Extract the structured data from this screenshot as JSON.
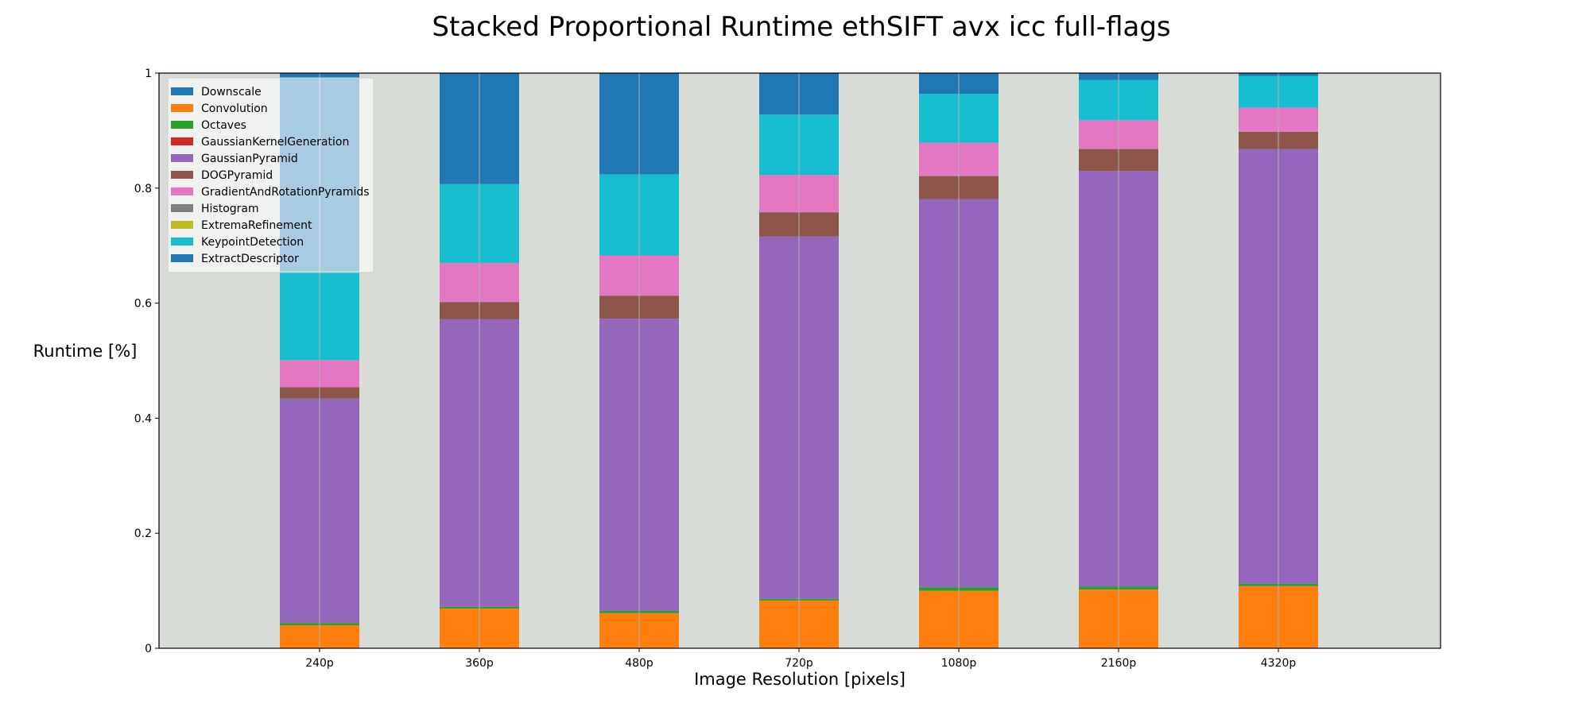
{
  "chart_data": {
    "type": "bar",
    "stacked": true,
    "title": "Stacked Proportional Runtime ethSIFT avx icc full-flags",
    "xlabel": "Image Resolution [pixels]",
    "ylabel": "Runtime [%]",
    "ylim": [
      0,
      1
    ],
    "yticks": [
      "0",
      "0.2",
      "0.4",
      "0.6",
      "0.8",
      "1"
    ],
    "grid": "vertical",
    "legend_position": "top-left",
    "background_color": "#d8dcd6",
    "categories": [
      "240p",
      "360p",
      "480p",
      "720p",
      "1080p",
      "2160p",
      "4320p"
    ],
    "series": [
      {
        "name": "Downscale",
        "color": "#1f77b4",
        "values": [
          0.0,
          0.0,
          0.0,
          0.0,
          0.0,
          0.0,
          0.0
        ]
      },
      {
        "name": "Convolution",
        "color": "#ff7f0e",
        "values": [
          0.04,
          0.069,
          0.061,
          0.083,
          0.1,
          0.102,
          0.108
        ]
      },
      {
        "name": "Octaves",
        "color": "#2ca02c",
        "values": [
          0.004,
          0.003,
          0.004,
          0.003,
          0.006,
          0.005,
          0.004
        ]
      },
      {
        "name": "GaussianKernelGeneration",
        "color": "#d62728",
        "values": [
          0.0,
          0.0,
          0.0,
          0.0,
          0.0,
          0.0,
          0.0
        ]
      },
      {
        "name": "GaussianPyramid",
        "color": "#9467bd",
        "values": [
          0.39,
          0.5,
          0.508,
          0.63,
          0.675,
          0.723,
          0.756
        ]
      },
      {
        "name": "DOGPyramid",
        "color": "#8c564b",
        "values": [
          0.02,
          0.03,
          0.04,
          0.042,
          0.04,
          0.038,
          0.03
        ]
      },
      {
        "name": "GradientAndRotationPyramids",
        "color": "#e377c2",
        "values": [
          0.047,
          0.068,
          0.07,
          0.065,
          0.058,
          0.05,
          0.042
        ]
      },
      {
        "name": "Histogram",
        "color": "#7f7f7f",
        "values": [
          0.0,
          0.0,
          0.0,
          0.0,
          0.0,
          0.0,
          0.0
        ]
      },
      {
        "name": "ExtremaRefinement",
        "color": "#bcbd22",
        "values": [
          0.0,
          0.0,
          0.0,
          0.0,
          0.0,
          0.0,
          0.0
        ]
      },
      {
        "name": "KeypointDetection",
        "color": "#17becf",
        "values": [
          0.155,
          0.137,
          0.141,
          0.105,
          0.085,
          0.07,
          0.055
        ]
      },
      {
        "name": "ExtractDescriptor",
        "color": "#1f77b4",
        "values": [
          0.344,
          0.193,
          0.176,
          0.072,
          0.036,
          0.012,
          0.005
        ]
      }
    ]
  }
}
